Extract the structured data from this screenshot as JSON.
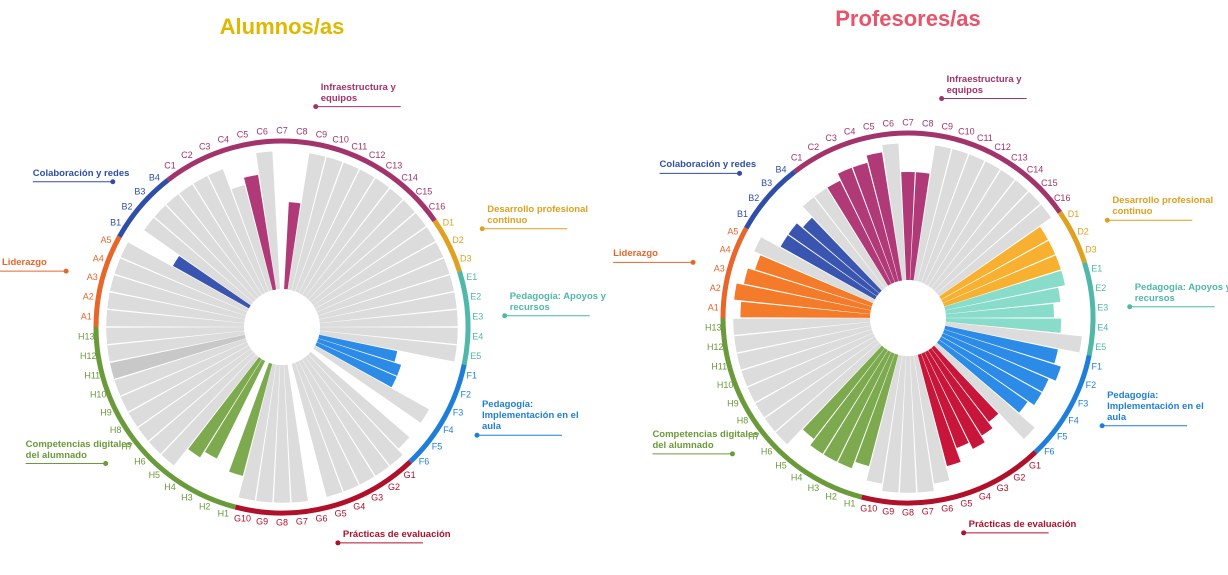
{
  "chart_data": [
    {
      "type": "radial-bar",
      "title": "Alumnos/as",
      "title_color": "#e0b800",
      "ylim": [
        0,
        100
      ],
      "groups": [
        {
          "name": "Liderazgo",
          "color": "#e8662a",
          "categories": [
            "A1",
            "A2",
            "A3",
            "A4",
            "A5"
          ],
          "values": [
            95,
            95,
            95,
            95,
            95
          ],
          "colors": [
            "#dcdcdc",
            "#dcdcdc",
            "#dcdcdc",
            "#dcdcdc",
            "#dcdcdc"
          ]
        },
        {
          "name": "Colaboración y redes",
          "color": "#2f4ea8",
          "categories": [
            "B1",
            "B2",
            "B3",
            "B4"
          ],
          "values": [
            60,
            90,
            90,
            90
          ],
          "colors": [
            "#3a55b0",
            "#dcdcdc",
            "#dcdcdc",
            "#dcdcdc"
          ]
        },
        {
          "name": "Infraestructura y equipos",
          "color": "#a3336b",
          "categories": [
            "C1",
            "C2",
            "C3",
            "C4",
            "C5",
            "C6",
            "C7",
            "C8",
            "C9",
            "C10",
            "C11",
            "C12",
            "C13",
            "C14",
            "C15",
            "C16"
          ],
          "values": [
            90,
            90,
            90,
            75,
            80,
            95,
            null,
            60,
            95,
            95,
            95,
            95,
            95,
            95,
            95,
            95
          ],
          "colors": [
            "#dcdcdc",
            "#dcdcdc",
            "#dcdcdc",
            "#dcdcdc",
            "#b03a78",
            "#dcdcdc",
            "#dcdcdc",
            "#b03a78",
            "#dcdcdc",
            "#dcdcdc",
            "#dcdcdc",
            "#dcdcdc",
            "#dcdcdc",
            "#dcdcdc",
            "#dcdcdc",
            "#dcdcdc"
          ]
        },
        {
          "name": "Desarrollo profesional continuo",
          "color": "#e0a020",
          "categories": [
            "D1",
            "D2",
            "D3"
          ],
          "values": [
            95,
            95,
            95
          ],
          "colors": [
            "#dcdcdc",
            "#dcdcdc",
            "#dcdcdc"
          ]
        },
        {
          "name": "Pedagogía: Apoyos y recursos",
          "color": "#4fb8a8",
          "categories": [
            "E1",
            "E2",
            "E3",
            "E4",
            "E5"
          ],
          "values": [
            95,
            95,
            95,
            95,
            95
          ],
          "colors": [
            "#dcdcdc",
            "#dcdcdc",
            "#dcdcdc",
            "#dcdcdc",
            "#dcdcdc"
          ]
        },
        {
          "name": "Pedagogía: Implementación en el aula",
          "color": "#1f7fd8",
          "categories": [
            "F1",
            "F2",
            "F3",
            "F4",
            "F5",
            "F6"
          ],
          "values": [
            55,
            60,
            60,
            90,
            null,
            90
          ],
          "colors": [
            "#2b8be6",
            "#2b8be6",
            "#2b8be6",
            "#dcdcdc",
            "#dcdcdc",
            "#dcdcdc"
          ]
        },
        {
          "name": "Prácticas de evaluación",
          "color": "#b0102a",
          "categories": [
            "G1",
            "G2",
            "G3",
            "G4",
            "G5",
            "G6",
            "G7",
            "G8",
            "G9",
            "G10"
          ],
          "values": [
            95,
            95,
            95,
            95,
            95,
            null,
            95,
            95,
            95,
            95
          ],
          "colors": [
            "#dcdcdc",
            "#dcdcdc",
            "#dcdcdc",
            "#dcdcdc",
            "#dcdcdc",
            "#dcdcdc",
            "#dcdcdc",
            "#dcdcdc",
            "#dcdcdc",
            "#dcdcdc"
          ]
        },
        {
          "name": "Competencias digitales del alumnado",
          "color": "#6a9a3a",
          "categories": [
            "H1",
            "H2",
            "H3",
            "H4",
            "H5",
            "H6",
            "H7",
            "H8",
            "H9",
            "H10",
            "H11",
            "H12",
            "H13"
          ],
          "values": [
            80,
            null,
            75,
            80,
            95,
            95,
            95,
            95,
            95,
            95,
            95,
            95,
            95
          ],
          "colors": [
            "#7daa4f",
            "#dcdcdc",
            "#7daa4f",
            "#7daa4f",
            "#dcdcdc",
            "#dcdcdc",
            "#dcdcdc",
            "#dcdcdc",
            "#dcdcdc",
            "#dcdcdc",
            "#c8c8c8",
            "#dcdcdc",
            "#dcdcdc"
          ]
        }
      ]
    },
    {
      "type": "radial-bar",
      "title": "Profesores/as",
      "title_color": "#e8546a",
      "ylim": [
        0,
        100
      ],
      "groups": [
        {
          "name": "Liderazgo",
          "color": "#e8662a",
          "categories": [
            "A1",
            "A2",
            "A3",
            "A4",
            "A5"
          ],
          "values": [
            90,
            95,
            90,
            85,
            90
          ],
          "colors": [
            "#f47b2a",
            "#f47b2a",
            "#f47b2a",
            "#f47b2a",
            "#dcdcdc"
          ]
        },
        {
          "name": "Colaboración y redes",
          "color": "#2f4ea8",
          "categories": [
            "B1",
            "B2",
            "B3",
            "B4"
          ],
          "values": [
            75,
            75,
            70,
            80
          ],
          "colors": [
            "#3a55b0",
            "#3a55b0",
            "#3a55b0",
            "#dcdcdc"
          ]
        },
        {
          "name": "Infraestructura y equipos",
          "color": "#a3336b",
          "categories": [
            "C1",
            "C2",
            "C3",
            "C4",
            "C5",
            "C6",
            "C7",
            "C8",
            "C9",
            "C10",
            "C11",
            "C12",
            "C13",
            "C14",
            "C15",
            "C16"
          ],
          "values": [
            80,
            80,
            85,
            85,
            90,
            95,
            75,
            75,
            95,
            95,
            95,
            95,
            95,
            95,
            95,
            95
          ],
          "colors": [
            "#dcdcdc",
            "#b03a78",
            "#b03a78",
            "#b03a78",
            "#b03a78",
            "#dcdcdc",
            "#b03a78",
            "#b03a78",
            "#dcdcdc",
            "#dcdcdc",
            "#dcdcdc",
            "#dcdcdc",
            "#dcdcdc",
            "#dcdcdc",
            "#dcdcdc",
            "#dcdcdc"
          ]
        },
        {
          "name": "Desarrollo profesional continuo",
          "color": "#e0a020",
          "categories": [
            "D1",
            "D2",
            "D3"
          ],
          "values": [
            85,
            85,
            85
          ],
          "colors": [
            "#f8b030",
            "#f8b030",
            "#f8b030"
          ]
        },
        {
          "name": "Pedagogía: Apoyos y recursos",
          "color": "#4fb8a8",
          "categories": [
            "E1",
            "E2",
            "E3",
            "E4",
            "E5"
          ],
          "values": [
            85,
            80,
            75,
            80,
            95
          ],
          "colors": [
            "#88dcc9",
            "#88dcc9",
            "#88dcc9",
            "#88dcc9",
            "#dcdcdc"
          ]
        },
        {
          "name": "Pedagogía: Implementación en el aula",
          "color": "#1f7fd8",
          "categories": [
            "F1",
            "F2",
            "F3",
            "F4",
            "F5",
            "F6"
          ],
          "values": [
            80,
            85,
            80,
            80,
            75,
            90
          ],
          "colors": [
            "#2b8be6",
            "#2b8be6",
            "#2b8be6",
            "#2b8be6",
            "#2b8be6",
            "#dcdcdc"
          ]
        },
        {
          "name": "Prácticas de evaluación",
          "color": "#b0102a",
          "categories": [
            "G1",
            "G2",
            "G3",
            "G4",
            "G5",
            "G6",
            "G7",
            "G8",
            "G9",
            "G10"
          ],
          "values": [
            65,
            70,
            75,
            70,
            80,
            90,
            95,
            95,
            95,
            90
          ],
          "colors": [
            "#c8163a",
            "#c8163a",
            "#c8163a",
            "#c8163a",
            "#c8163a",
            "#dcdcdc",
            "#dcdcdc",
            "#dcdcdc",
            "#dcdcdc",
            "#dcdcdc"
          ]
        },
        {
          "name": "Competencias digitales del alumnado",
          "color": "#6a9a3a",
          "categories": [
            "H1",
            "H2",
            "H3",
            "H4",
            "H5",
            "H6",
            "H7",
            "H8",
            "H9",
            "H10",
            "H11",
            "H12",
            "H13"
          ],
          "values": [
            80,
            85,
            85,
            85,
            80,
            95,
            95,
            95,
            95,
            95,
            95,
            95,
            95
          ],
          "colors": [
            "#7daa4f",
            "#7daa4f",
            "#7daa4f",
            "#7daa4f",
            "#7daa4f",
            "#dcdcdc",
            "#dcdcdc",
            "#dcdcdc",
            "#dcdcdc",
            "#dcdcdc",
            "#dcdcdc",
            "#dcdcdc",
            "#dcdcdc"
          ]
        }
      ]
    }
  ]
}
